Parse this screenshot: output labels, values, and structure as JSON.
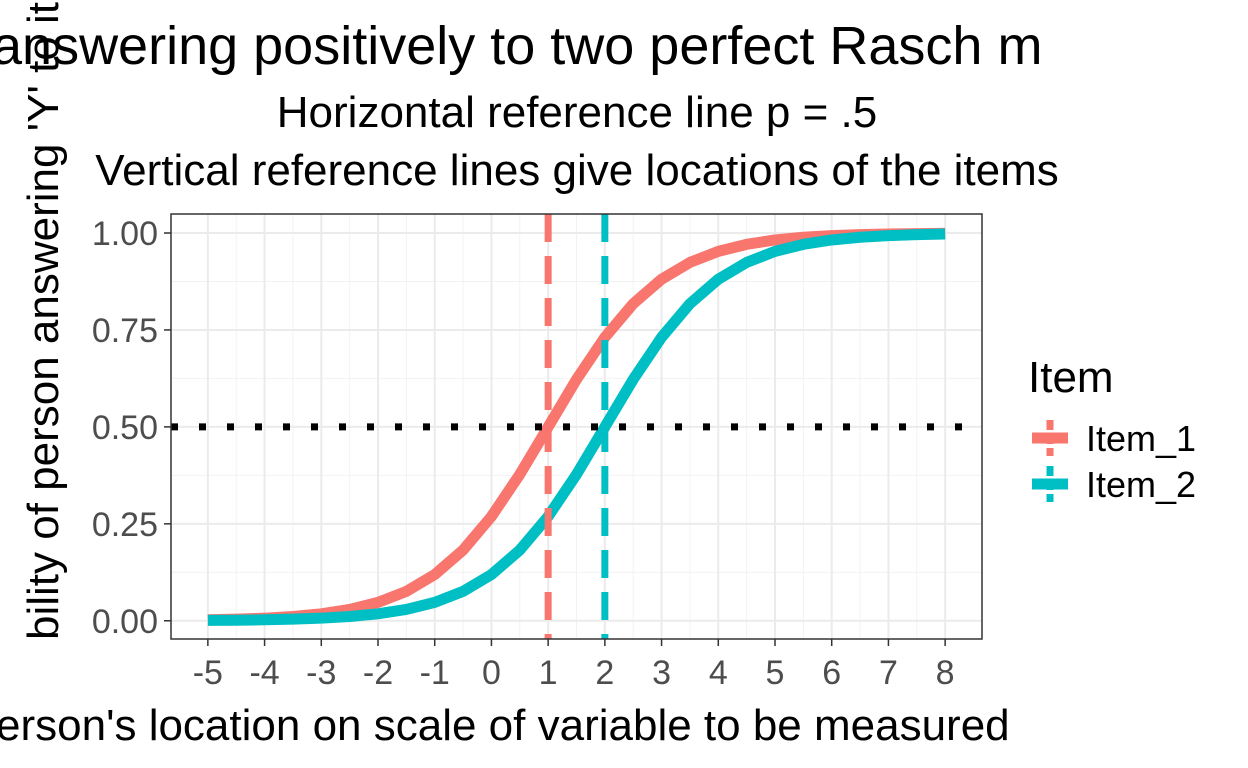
{
  "chart_data": {
    "type": "line",
    "title": "answering positively to two perfect Rasch m",
    "subtitle": [
      "Horizontal reference line p = .5",
      "Vertical reference lines give locations of the items"
    ],
    "x_label": "erson's location on scale of variable to be measured",
    "y_label": "bility of person answering 'Y' to it",
    "x": [
      -5,
      -4.5,
      -4,
      -3.5,
      -3,
      -2.5,
      -2,
      -1.5,
      -1,
      -0.5,
      0,
      0.5,
      1,
      1.5,
      2,
      2.5,
      3,
      3.5,
      4,
      4.5,
      5,
      5.5,
      6,
      6.5,
      7,
      7.5,
      8
    ],
    "series": [
      {
        "name": "Item_1",
        "color": "#f8766d",
        "location": 1,
        "values": [
          0.0025,
          0.0041,
          0.0067,
          0.011,
          0.018,
          0.0293,
          0.0474,
          0.0759,
          0.1192,
          0.1824,
          0.2689,
          0.3775,
          0.5,
          0.6225,
          0.7311,
          0.8176,
          0.8808,
          0.9241,
          0.9526,
          0.9707,
          0.982,
          0.989,
          0.9933,
          0.9959,
          0.9975,
          0.9985,
          0.9991
        ]
      },
      {
        "name": "Item_2",
        "color": "#00bfc4",
        "location": 2,
        "values": [
          0.0009,
          0.0015,
          0.0025,
          0.0041,
          0.0067,
          0.011,
          0.018,
          0.0293,
          0.0474,
          0.0759,
          0.1192,
          0.1824,
          0.2689,
          0.3775,
          0.5,
          0.6225,
          0.7311,
          0.8176,
          0.8808,
          0.9241,
          0.9526,
          0.9707,
          0.982,
          0.989,
          0.9933,
          0.9959,
          0.9975
        ]
      }
    ],
    "hline": 0.5,
    "legend_title": "Item",
    "legend": "right",
    "grid": true,
    "xlim": [
      -5.65,
      8.65
    ],
    "ylim": [
      -0.047,
      1.049
    ],
    "xticks": [
      -5,
      -4,
      -3,
      -2,
      -1,
      0,
      1,
      2,
      3,
      4,
      5,
      6,
      7,
      8
    ],
    "yticks": [
      {
        "value": 0,
        "label": "0.00"
      },
      {
        "value": 0.25,
        "label": "0.25"
      },
      {
        "value": 0.5,
        "label": "0.50"
      },
      {
        "value": 0.75,
        "label": "0.75"
      },
      {
        "value": 1,
        "label": "1.00"
      }
    ]
  }
}
